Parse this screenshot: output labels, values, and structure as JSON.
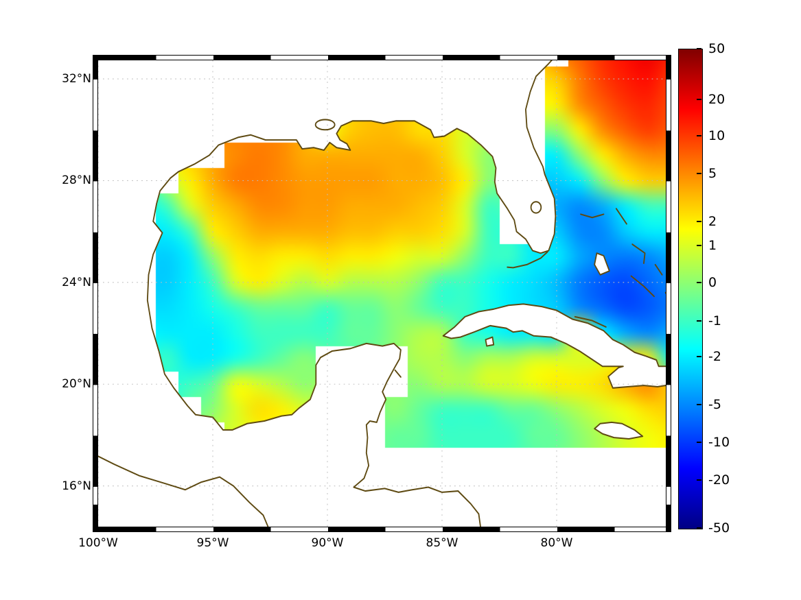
{
  "figure": {
    "background": "#ffffff",
    "coast_color": "#5e4a12",
    "land_color": "#ffffff",
    "grid_color": "#bdbdbd",
    "frame_colors": [
      "#000000",
      "#ffffff"
    ]
  },
  "axes": {
    "lon_range": [
      -100.0,
      -75.24
    ],
    "lat_range": [
      14.4,
      32.73
    ],
    "lon_ticks": [
      {
        "label": "100°W",
        "value": -100
      },
      {
        "label": "95°W",
        "value": -95
      },
      {
        "label": "90°W",
        "value": -90
      },
      {
        "label": "85°W",
        "value": -85
      },
      {
        "label": "80°W",
        "value": -80
      }
    ],
    "lat_ticks": [
      {
        "label": "32°N",
        "value": 32
      },
      {
        "label": "28°N",
        "value": 28
      },
      {
        "label": "24°N",
        "value": 24
      },
      {
        "label": "20°N",
        "value": 20
      },
      {
        "label": "16°N",
        "value": 16
      }
    ]
  },
  "colorbar": {
    "ticks": [
      {
        "label": "50",
        "value": 50,
        "pos": 0.0
      },
      {
        "label": "20",
        "value": 20,
        "pos": 0.106
      },
      {
        "label": "10",
        "value": 10,
        "pos": 0.182
      },
      {
        "label": "5",
        "value": 5,
        "pos": 0.26
      },
      {
        "label": "2",
        "value": 2,
        "pos": 0.36
      },
      {
        "label": "1",
        "value": 1,
        "pos": 0.411
      },
      {
        "label": "0",
        "value": 0,
        "pos": 0.488
      },
      {
        "label": "-1",
        "value": -1,
        "pos": 0.568
      },
      {
        "label": "-2",
        "value": -2,
        "pos": 0.642
      },
      {
        "label": "-5",
        "value": -5,
        "pos": 0.742
      },
      {
        "label": "-10",
        "value": -10,
        "pos": 0.821
      },
      {
        "label": "-20",
        "value": -20,
        "pos": 0.9
      },
      {
        "label": "-50",
        "value": -50,
        "pos": 1.0
      }
    ]
  },
  "chart_data": {
    "type": "heatmap",
    "colormap": "jet",
    "scale_ticks": [
      50,
      20,
      10,
      5,
      2,
      1,
      0,
      -1,
      -2,
      -5,
      -10,
      -20,
      -50
    ],
    "scale_positions": [
      0,
      0.106,
      0.182,
      0.26,
      0.36,
      0.411,
      0.488,
      0.568,
      0.642,
      0.742,
      0.821,
      0.9,
      1.0
    ],
    "lons": [
      -100,
      -99,
      -98,
      -97,
      -96,
      -95,
      -94,
      -93,
      -92,
      -91,
      -90,
      -89,
      -88,
      -87,
      -86,
      -85,
      -84,
      -83,
      -82,
      -81,
      -80,
      -79,
      -78,
      -77,
      -76,
      -75
    ],
    "lats": [
      33,
      32,
      31,
      30,
      29,
      28,
      27,
      26,
      25,
      24,
      23,
      22,
      21,
      20,
      19,
      18,
      17,
      16,
      15,
      14
    ],
    "values": [
      [
        null,
        null,
        null,
        null,
        null,
        null,
        null,
        null,
        null,
        null,
        null,
        null,
        null,
        null,
        null,
        null,
        null,
        null,
        null,
        null,
        null,
        8,
        12,
        16,
        20,
        14
      ],
      [
        null,
        null,
        null,
        null,
        null,
        null,
        null,
        null,
        null,
        null,
        null,
        null,
        null,
        null,
        null,
        null,
        null,
        null,
        null,
        null,
        3,
        6,
        10,
        14,
        16,
        10
      ],
      [
        null,
        null,
        null,
        null,
        null,
        null,
        null,
        null,
        null,
        null,
        null,
        null,
        null,
        null,
        null,
        null,
        null,
        null,
        null,
        null,
        2,
        5,
        8,
        11,
        13,
        9
      ],
      [
        null,
        null,
        null,
        null,
        null,
        null,
        null,
        null,
        null,
        null,
        1.5,
        3,
        3.5,
        3.5,
        2.5,
        2.5,
        1,
        null,
        null,
        null,
        0,
        2,
        5,
        8,
        10,
        8
      ],
      [
        null,
        null,
        null,
        null,
        null,
        null,
        5,
        6,
        5,
        4,
        4,
        4,
        4,
        4,
        4,
        3,
        1,
        0,
        null,
        null,
        -2,
        0,
        2,
        4,
        5,
        5
      ],
      [
        null,
        null,
        null,
        null,
        2,
        4,
        6,
        6,
        5,
        4.5,
        4.5,
        4.5,
        4.5,
        4,
        4,
        3.5,
        2,
        0,
        null,
        null,
        -3,
        -2,
        0,
        2,
        3,
        3
      ],
      [
        null,
        null,
        null,
        -1,
        1,
        3,
        4,
        5,
        5,
        4.5,
        4.5,
        4,
        4,
        4,
        3.5,
        3,
        1,
        -1,
        null,
        null,
        -4,
        -5,
        -4,
        -2,
        -1,
        -1
      ],
      [
        null,
        null,
        null,
        -2,
        -1,
        2,
        3,
        4,
        4,
        4,
        4,
        3.5,
        3.5,
        3,
        3,
        2.5,
        1,
        -1,
        null,
        null,
        -3,
        -5,
        -5,
        -3,
        -2,
        -2
      ],
      [
        null,
        null,
        null,
        -3,
        -2,
        0,
        2,
        2.5,
        2,
        2,
        2.5,
        2,
        2,
        1.5,
        1,
        1,
        0,
        -1,
        -1,
        -2,
        -2,
        -4,
        -5,
        -6,
        -5,
        -4
      ],
      [
        null,
        null,
        null,
        -3,
        -2,
        -1,
        1,
        2,
        1,
        0.5,
        1,
        0.5,
        0.5,
        0.5,
        0,
        -1,
        -1,
        -1.5,
        -2,
        -2.5,
        -3.5,
        -6,
        -8,
        -9,
        -7,
        -5
      ],
      [
        null,
        null,
        null,
        -2.5,
        -2,
        -1.5,
        -1,
        -0.5,
        -0.5,
        -0.5,
        -1,
        -0.5,
        -0.5,
        0,
        -0.5,
        -1,
        -1,
        -1.5,
        -2,
        -2.5,
        -3,
        -5,
        -7,
        -9,
        -8,
        -6
      ],
      [
        null,
        null,
        null,
        -2,
        -2,
        -2,
        -1.5,
        -1,
        -1,
        -1,
        -1,
        -0.5,
        -0.5,
        0,
        0.5,
        0.5,
        -1,
        -1.5,
        -2,
        -2,
        -2.5,
        2,
        -2,
        -4,
        -5,
        -4
      ],
      [
        null,
        null,
        null,
        -1,
        -2,
        -2,
        -1.5,
        -1,
        -0.5,
        0,
        null,
        null,
        null,
        null,
        0.5,
        0.5,
        0,
        0.5,
        0.5,
        1,
        1,
        1,
        1,
        2,
        2,
        -2
      ],
      [
        null,
        null,
        null,
        null,
        -1,
        -0.5,
        1.5,
        1,
        0.5,
        0,
        null,
        null,
        null,
        null,
        0,
        0.5,
        0.5,
        1,
        1,
        1.5,
        2,
        2,
        2.5,
        4,
        5,
        3
      ],
      [
        null,
        null,
        null,
        null,
        null,
        0,
        1,
        2.5,
        2,
        1,
        null,
        null,
        null,
        0,
        -0.5,
        -1,
        -1,
        -1,
        -0.5,
        -0.5,
        0,
        0.5,
        1,
        1.5,
        2.5,
        3
      ],
      [
        null,
        null,
        null,
        null,
        null,
        null,
        1,
        1.5,
        null,
        null,
        null,
        null,
        null,
        -0.5,
        -0.5,
        -1,
        -1,
        -1,
        -1,
        -0.5,
        -0.5,
        0,
        0.5,
        1,
        1.5,
        2
      ],
      [
        null,
        null,
        null,
        null,
        null,
        null,
        null,
        null,
        null,
        null,
        null,
        null,
        null,
        null,
        null,
        null,
        null,
        null,
        null,
        null,
        null,
        null,
        null,
        null,
        null,
        null
      ],
      [
        null,
        null,
        null,
        null,
        null,
        null,
        null,
        null,
        null,
        null,
        null,
        null,
        null,
        null,
        null,
        null,
        null,
        null,
        null,
        null,
        null,
        null,
        null,
        null,
        null,
        null
      ],
      [
        null,
        null,
        null,
        null,
        null,
        null,
        null,
        null,
        null,
        null,
        null,
        null,
        null,
        null,
        null,
        null,
        null,
        null,
        null,
        null,
        null,
        null,
        null,
        null,
        null,
        null
      ],
      [
        null,
        null,
        null,
        null,
        null,
        null,
        null,
        null,
        null,
        null,
        null,
        null,
        null,
        null,
        null,
        null,
        null,
        null,
        null,
        null,
        null,
        null,
        null,
        null,
        null,
        null
      ]
    ]
  }
}
